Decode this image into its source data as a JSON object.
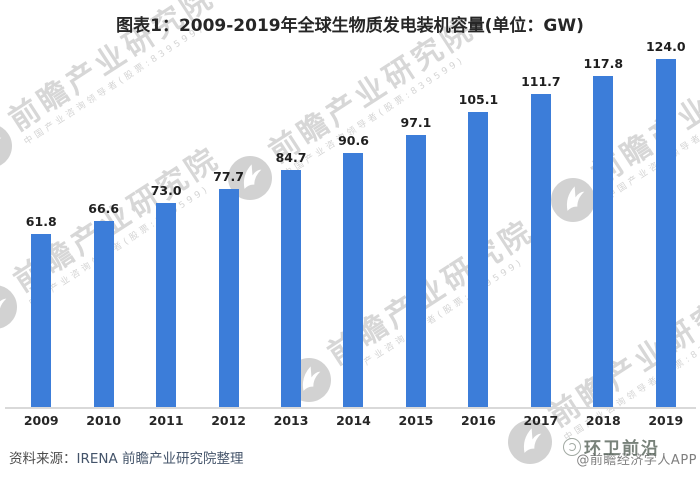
{
  "chart_data": {
    "type": "bar",
    "title": "图表1：2009-2019年全球生物质发电装机容量(单位：GW)",
    "unit": "GW",
    "categories": [
      "2009",
      "2010",
      "2011",
      "2012",
      "2013",
      "2014",
      "2015",
      "2016",
      "2017",
      "2018",
      "2019"
    ],
    "values": [
      61.8,
      66.6,
      73.0,
      77.7,
      84.7,
      90.6,
      97.1,
      105.1,
      111.7,
      117.8,
      124.0
    ],
    "value_labels": [
      "61.8",
      "66.6",
      "73.0",
      "77.7",
      "84.7",
      "90.6",
      "97.1",
      "105.1",
      "111.7",
      "117.8",
      "124.0"
    ],
    "ylim": [
      0,
      145
    ],
    "grid": false,
    "legend": "none",
    "bar_color": "#3c7dd9",
    "axis_color": "#d9d9d9",
    "label_color": "#1f1f1f"
  },
  "watermark": {
    "brand": "前瞻产业研究院",
    "tagline": "中国产业咨询领导者(股票:839599)",
    "logo": "qianzhan-bird-icon"
  },
  "footer": {
    "source_prefix": "资料来源：",
    "source_text": "IRENA 前瞻产业研究院整理",
    "credit": "@前瞻经济学人APP",
    "overlay_watermark": "环卫前沿"
  },
  "colors": {
    "bar": "#3c7dd9",
    "axis": "#d9d9d9",
    "title": "#262626",
    "source_prefix": "#4d4d4d",
    "source_text": "#44546a",
    "credit": "#7f7f7f",
    "watermark": "#d7d7d7",
    "overlay_watermark": "#57635a"
  }
}
